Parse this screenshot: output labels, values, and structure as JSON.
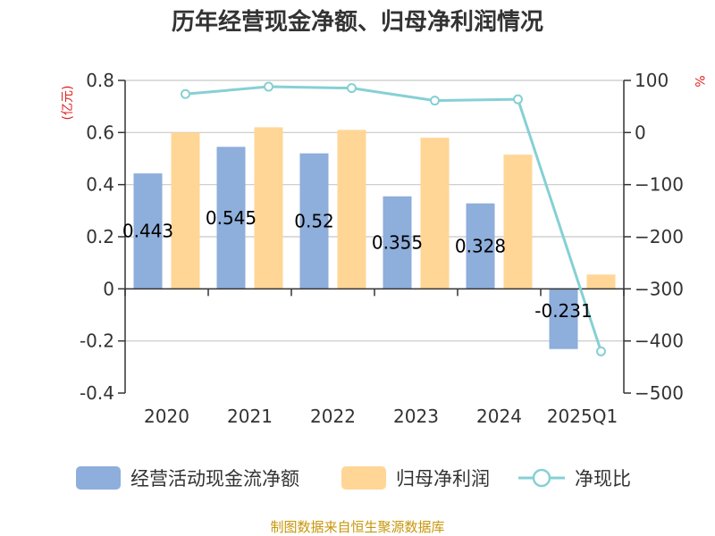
{
  "chart_data": {
    "type": "bar",
    "title": "历年经营现金净额、归母净利润情况",
    "categories": [
      "2020",
      "2021",
      "2022",
      "2023",
      "2024",
      "2025Q1"
    ],
    "series": [
      {
        "name": "经营活动现金流净额",
        "axis": "left",
        "kind": "bar",
        "color": "#8eaedb",
        "values": [
          0.443,
          0.545,
          0.52,
          0.355,
          0.328,
          -0.231
        ],
        "labels": [
          "0.443",
          "0.545",
          "0.52",
          "0.355",
          "0.328",
          "-0.231"
        ]
      },
      {
        "name": "归母净利润",
        "axis": "left",
        "kind": "bar",
        "color": "#ffd696",
        "values": [
          0.6,
          0.62,
          0.61,
          0.58,
          0.515,
          0.055
        ]
      },
      {
        "name": "净现比",
        "axis": "right",
        "kind": "line",
        "color": "#86d0d4",
        "values": [
          73.8,
          87.9,
          85.2,
          61.2,
          63.7,
          -420
        ]
      }
    ],
    "left_axis": {
      "unit": "(亿元)",
      "ylim": [
        -0.4,
        0.8
      ],
      "ticks": [
        0.8,
        0.6,
        0.4,
        0.2,
        0,
        -0.2,
        -0.4
      ],
      "tick_labels": [
        "0.8",
        "0.6",
        "0.4",
        "0.2",
        "0",
        "-0.2",
        "-0.4"
      ]
    },
    "right_axis": {
      "unit": "%",
      "ylim": [
        -500,
        100
      ],
      "ticks": [
        100,
        0,
        -100,
        -200,
        -300,
        -400,
        -500
      ],
      "tick_labels": [
        "100",
        "0",
        "−100",
        "−200",
        "−300",
        "−400",
        "−500"
      ]
    },
    "grid": true,
    "legend_position": "bottom"
  },
  "source": "制图数据来自恒生聚源数据库"
}
